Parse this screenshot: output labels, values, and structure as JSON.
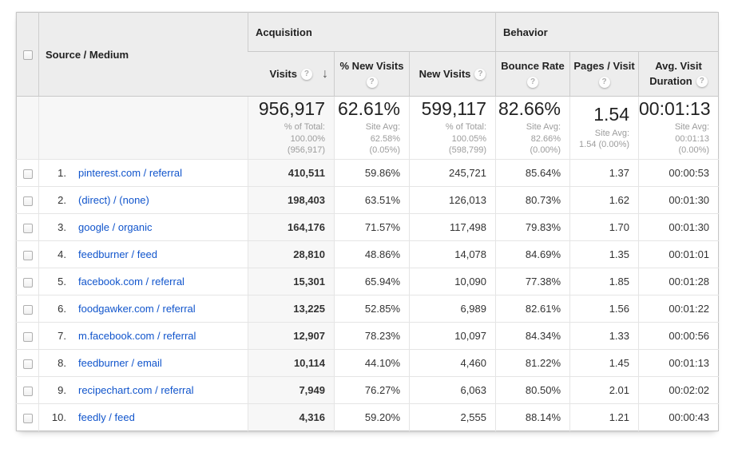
{
  "colors": {
    "link": "#1155cc",
    "header_bg": "#ededed",
    "sorted_column_bg": "#f7f7f7",
    "border": "#c6c6c6",
    "note_text": "#9c9c9c"
  },
  "icons": {
    "help": "?",
    "sort_desc": "↓",
    "checkbox": "unchecked"
  },
  "groups": {
    "acquisition": "Acquisition",
    "behavior": "Behavior"
  },
  "columns": {
    "source_medium": {
      "label": "Source / Medium"
    },
    "visits": {
      "label": "Visits"
    },
    "pct_new_visits": {
      "label": "% New Visits"
    },
    "new_visits": {
      "label": "New Visits"
    },
    "bounce_rate": {
      "label": "Bounce Rate"
    },
    "pages_per_visit": {
      "label": "Pages / Visit"
    },
    "avg_visit_duration": {
      "label": "Avg. Visit Duration"
    }
  },
  "summary": {
    "visits": {
      "value": "956,917",
      "note": "% of Total:\n100.00%\n(956,917)"
    },
    "pct_new_visits": {
      "value": "62.61%",
      "note": "Site Avg:\n62.58%\n(0.05%)"
    },
    "new_visits": {
      "value": "599,117",
      "note": "% of Total:\n100.05%\n(598,799)"
    },
    "bounce_rate": {
      "value": "82.66%",
      "note": "Site Avg:\n82.66%\n(0.00%)"
    },
    "pages_per_visit": {
      "value": "1.54",
      "note": "Site Avg:\n1.54 (0.00%)"
    },
    "avg_visit_duration": {
      "value": "00:01:13",
      "note": "Site Avg:\n00:01:13\n(0.00%)"
    }
  },
  "rows": [
    {
      "index": "1.",
      "source_medium": "pinterest.com / referral",
      "visits": "410,511",
      "pct_new_visits": "59.86%",
      "new_visits": "245,721",
      "bounce_rate": "85.64%",
      "pages_per_visit": "1.37",
      "avg_visit_duration": "00:00:53"
    },
    {
      "index": "2.",
      "source_medium": "(direct) / (none)",
      "visits": "198,403",
      "pct_new_visits": "63.51%",
      "new_visits": "126,013",
      "bounce_rate": "80.73%",
      "pages_per_visit": "1.62",
      "avg_visit_duration": "00:01:30"
    },
    {
      "index": "3.",
      "source_medium": "google / organic",
      "visits": "164,176",
      "pct_new_visits": "71.57%",
      "new_visits": "117,498",
      "bounce_rate": "79.83%",
      "pages_per_visit": "1.70",
      "avg_visit_duration": "00:01:30"
    },
    {
      "index": "4.",
      "source_medium": "feedburner / feed",
      "visits": "28,810",
      "pct_new_visits": "48.86%",
      "new_visits": "14,078",
      "bounce_rate": "84.69%",
      "pages_per_visit": "1.35",
      "avg_visit_duration": "00:01:01"
    },
    {
      "index": "5.",
      "source_medium": "facebook.com / referral",
      "visits": "15,301",
      "pct_new_visits": "65.94%",
      "new_visits": "10,090",
      "bounce_rate": "77.38%",
      "pages_per_visit": "1.85",
      "avg_visit_duration": "00:01:28"
    },
    {
      "index": "6.",
      "source_medium": "foodgawker.com / referral",
      "visits": "13,225",
      "pct_new_visits": "52.85%",
      "new_visits": "6,989",
      "bounce_rate": "82.61%",
      "pages_per_visit": "1.56",
      "avg_visit_duration": "00:01:22"
    },
    {
      "index": "7.",
      "source_medium": "m.facebook.com / referral",
      "visits": "12,907",
      "pct_new_visits": "78.23%",
      "new_visits": "10,097",
      "bounce_rate": "84.34%",
      "pages_per_visit": "1.33",
      "avg_visit_duration": "00:00:56"
    },
    {
      "index": "8.",
      "source_medium": "feedburner / email",
      "visits": "10,114",
      "pct_new_visits": "44.10%",
      "new_visits": "4,460",
      "bounce_rate": "81.22%",
      "pages_per_visit": "1.45",
      "avg_visit_duration": "00:01:13"
    },
    {
      "index": "9.",
      "source_medium": "recipechart.com / referral",
      "visits": "7,949",
      "pct_new_visits": "76.27%",
      "new_visits": "6,063",
      "bounce_rate": "80.50%",
      "pages_per_visit": "2.01",
      "avg_visit_duration": "00:02:02"
    },
    {
      "index": "10.",
      "source_medium": "feedly / feed",
      "visits": "4,316",
      "pct_new_visits": "59.20%",
      "new_visits": "2,555",
      "bounce_rate": "88.14%",
      "pages_per_visit": "1.21",
      "avg_visit_duration": "00:00:43"
    }
  ]
}
